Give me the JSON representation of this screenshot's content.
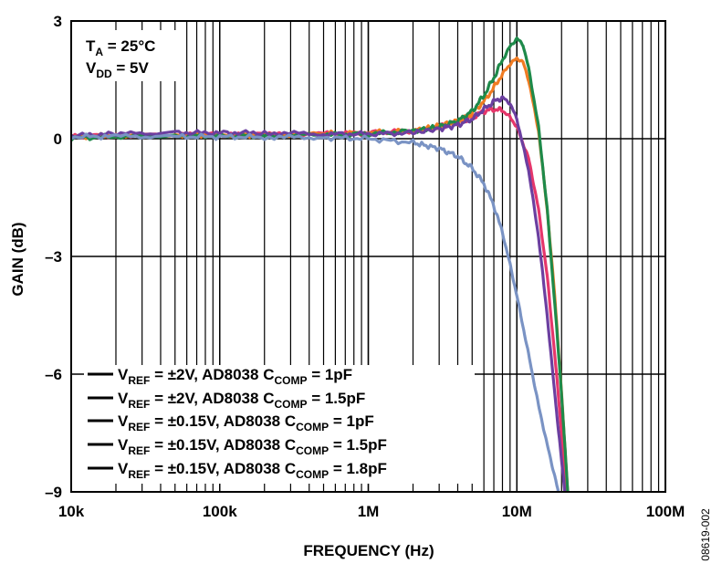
{
  "chart_data": {
    "type": "line",
    "x_scale": "log",
    "xlim": [
      10000,
      100000000
    ],
    "ylim": [
      -9,
      3
    ],
    "grid": true,
    "xlabel": "FREQUENCY (Hz)",
    "ylabel": "GAIN (dB)",
    "x_tick_labels": [
      "10k",
      "100k",
      "1M",
      "10M",
      "100M"
    ],
    "y_tick_labels": [
      "3",
      "0",
      "–3",
      "–6",
      "–9"
    ],
    "y_ticks": [
      3,
      0,
      -3,
      -6,
      -9
    ],
    "x_ticks": [
      10000,
      100000,
      1000000,
      10000000,
      100000000
    ],
    "annotation": {
      "line1_main": "T",
      "line1_sub": "A",
      "line1_rest": " = 25°C",
      "line2_main": "V",
      "line2_sub": "DD",
      "line2_rest": " = 5V"
    },
    "figure_id": "08619-002",
    "legend_position": "bottom-left",
    "series": [
      {
        "color": "#e5366b",
        "legend": {
          "a": "V",
          "a_sub": "REF",
          "b": " = ±2V, AD8038 C",
          "b_sub": "COMP",
          "c": " = 1pF"
        },
        "points": [
          [
            10000,
            0.05
          ],
          [
            20000,
            0.08
          ],
          [
            50000,
            0.1
          ],
          [
            100000,
            0.1
          ],
          [
            200000,
            0.1
          ],
          [
            500000,
            0.12
          ],
          [
            1000000,
            0.15
          ],
          [
            2000000,
            0.2
          ],
          [
            3000000,
            0.3
          ],
          [
            4000000,
            0.4
          ],
          [
            5000000,
            0.55
          ],
          [
            6000000,
            0.7
          ],
          [
            7000000,
            0.75
          ],
          [
            8000000,
            0.72
          ],
          [
            9000000,
            0.55
          ],
          [
            10000000,
            0.3
          ],
          [
            12000000,
            -0.5
          ],
          [
            14000000,
            -1.8
          ],
          [
            16000000,
            -3.5
          ],
          [
            18000000,
            -5.5
          ],
          [
            20000000,
            -7.5
          ],
          [
            21500000,
            -9
          ]
        ]
      },
      {
        "color": "#f07b22",
        "legend": {
          "a": "V",
          "a_sub": "REF",
          "b": " = ±2V, AD8038 C",
          "b_sub": "COMP",
          "c": " = 1.5pF"
        },
        "points": [
          [
            10000,
            0.05
          ],
          [
            20000,
            0.08
          ],
          [
            50000,
            0.1
          ],
          [
            100000,
            0.1
          ],
          [
            200000,
            0.1
          ],
          [
            500000,
            0.12
          ],
          [
            1000000,
            0.15
          ],
          [
            2000000,
            0.2
          ],
          [
            3000000,
            0.32
          ],
          [
            4000000,
            0.45
          ],
          [
            5000000,
            0.65
          ],
          [
            6000000,
            0.95
          ],
          [
            7000000,
            1.3
          ],
          [
            8000000,
            1.65
          ],
          [
            9000000,
            1.9
          ],
          [
            10000000,
            2.05
          ],
          [
            11000000,
            1.95
          ],
          [
            12000000,
            1.5
          ],
          [
            14000000,
            0.2
          ],
          [
            16000000,
            -1.8
          ],
          [
            18000000,
            -4.0
          ],
          [
            20000000,
            -6.5
          ],
          [
            22000000,
            -9
          ]
        ]
      },
      {
        "color": "#1e8a4a",
        "legend": {
          "a": "V",
          "a_sub": "REF",
          "b": " = ±0.15V, AD8038 C",
          "b_sub": "COMP",
          "c": " = 1pF"
        },
        "points": [
          [
            10000,
            0.02
          ],
          [
            20000,
            0.05
          ],
          [
            50000,
            0.08
          ],
          [
            100000,
            0.08
          ],
          [
            200000,
            0.08
          ],
          [
            500000,
            0.1
          ],
          [
            1000000,
            0.12
          ],
          [
            2000000,
            0.2
          ],
          [
            3000000,
            0.3
          ],
          [
            4000000,
            0.45
          ],
          [
            5000000,
            0.7
          ],
          [
            6000000,
            1.1
          ],
          [
            7000000,
            1.55
          ],
          [
            8000000,
            2.0
          ],
          [
            9000000,
            2.35
          ],
          [
            10000000,
            2.55
          ],
          [
            11000000,
            2.4
          ],
          [
            12000000,
            1.8
          ],
          [
            14000000,
            0.3
          ],
          [
            16000000,
            -1.8
          ],
          [
            18000000,
            -4.2
          ],
          [
            20000000,
            -6.5
          ],
          [
            22000000,
            -9
          ]
        ]
      },
      {
        "color": "#6b3fa0",
        "legend": {
          "a": "V",
          "a_sub": "REF",
          "b": " = ±0.15V, AD8038 C",
          "b_sub": "COMP",
          "c": " = 1.5pF"
        },
        "points": [
          [
            10000,
            0.08
          ],
          [
            20000,
            0.12
          ],
          [
            50000,
            0.15
          ],
          [
            100000,
            0.15
          ],
          [
            200000,
            0.15
          ],
          [
            500000,
            0.12
          ],
          [
            1000000,
            0.12
          ],
          [
            2000000,
            0.15
          ],
          [
            3000000,
            0.25
          ],
          [
            4000000,
            0.35
          ],
          [
            5000000,
            0.5
          ],
          [
            6000000,
            0.75
          ],
          [
            7000000,
            0.95
          ],
          [
            8000000,
            1.05
          ],
          [
            9000000,
            0.9
          ],
          [
            10000000,
            0.5
          ],
          [
            12000000,
            -0.8
          ],
          [
            14000000,
            -2.5
          ],
          [
            16000000,
            -4.5
          ],
          [
            18000000,
            -6.5
          ],
          [
            20000000,
            -8.2
          ],
          [
            21000000,
            -9
          ]
        ]
      },
      {
        "color": "#7a93c4",
        "legend": {
          "a": "V",
          "a_sub": "REF",
          "b": " = ±0.15V, AD8038 C",
          "b_sub": "COMP",
          "c": " = 1.8pF"
        },
        "points": [
          [
            10000,
            0.05
          ],
          [
            20000,
            0.06
          ],
          [
            50000,
            0.05
          ],
          [
            100000,
            0.05
          ],
          [
            200000,
            0.04
          ],
          [
            500000,
            0.03
          ],
          [
            1000000,
            0.0
          ],
          [
            2000000,
            -0.1
          ],
          [
            3000000,
            -0.25
          ],
          [
            4000000,
            -0.45
          ],
          [
            5000000,
            -0.75
          ],
          [
            6000000,
            -1.15
          ],
          [
            7000000,
            -1.7
          ],
          [
            8000000,
            -2.4
          ],
          [
            9000000,
            -3.2
          ],
          [
            10000000,
            -4.0
          ],
          [
            12000000,
            -5.5
          ],
          [
            14000000,
            -6.8
          ],
          [
            16000000,
            -7.8
          ],
          [
            18000000,
            -8.6
          ],
          [
            19000000,
            -9
          ]
        ]
      }
    ]
  }
}
